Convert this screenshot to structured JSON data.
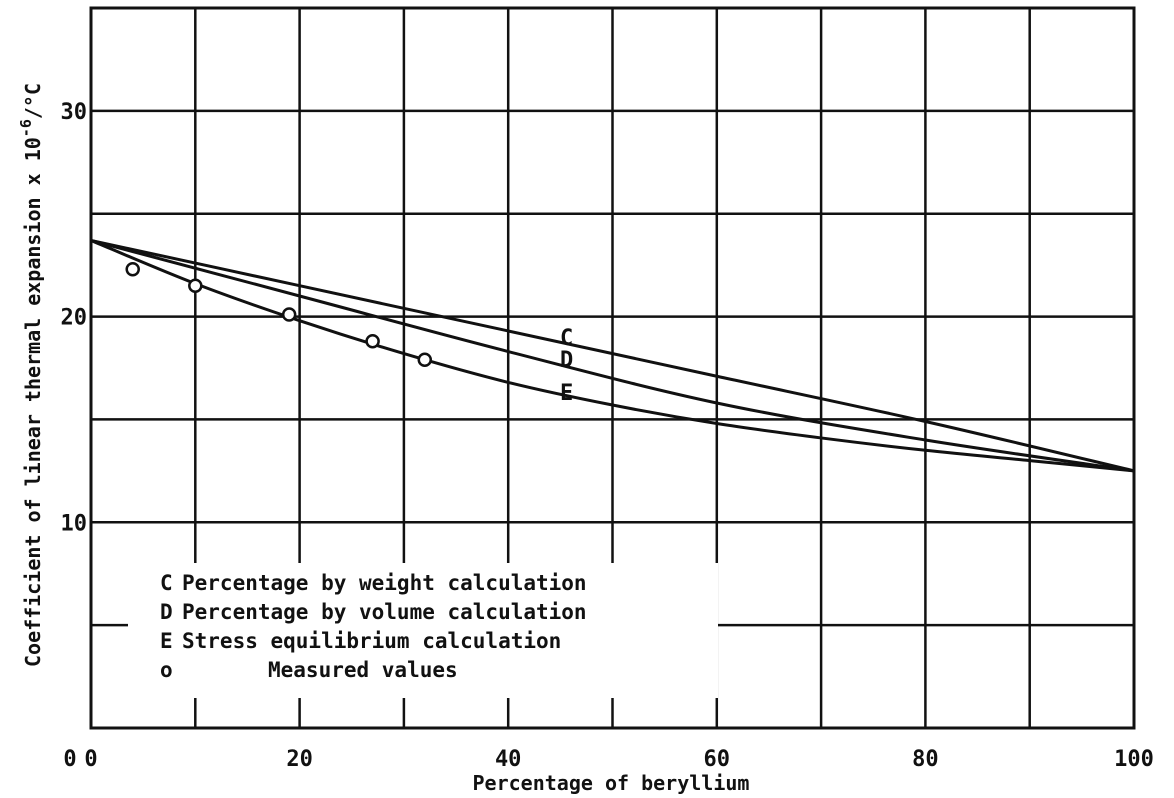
{
  "chart_data": {
    "type": "line",
    "xlabel": "Percentage of beryllium",
    "ylabel": "Coefficient of linear thermal expansion x 10",
    "ylabel_exp": "-6",
    "ylabel_unit": "/°C",
    "xlim": [
      0,
      100
    ],
    "ylim": [
      0,
      35
    ],
    "x_ticks": [
      0,
      20,
      40,
      60,
      80,
      100
    ],
    "y_ticks": [
      10,
      20,
      30
    ],
    "grid": true,
    "series": [
      {
        "name": "C",
        "x": [
          0,
          20,
          40,
          60,
          80,
          100
        ],
        "y": [
          23.7,
          21.5,
          19.3,
          17.1,
          14.9,
          12.5
        ]
      },
      {
        "name": "D",
        "x": [
          0,
          20,
          40,
          60,
          80,
          100
        ],
        "y": [
          23.7,
          21.0,
          18.3,
          15.8,
          14.0,
          12.5
        ]
      },
      {
        "name": "E",
        "x": [
          0,
          10,
          20,
          30,
          40,
          50,
          60,
          70,
          80,
          90,
          100
        ],
        "y": [
          23.7,
          21.6,
          19.8,
          18.2,
          16.8,
          15.7,
          14.8,
          14.1,
          13.5,
          13.0,
          12.5
        ]
      },
      {
        "name": "o",
        "type": "scatter",
        "x": [
          4,
          10,
          19,
          27,
          32
        ],
        "y": [
          22.3,
          21.5,
          20.1,
          18.8,
          17.9
        ]
      }
    ],
    "legend": {
      "placement": "bottom-left",
      "entries": [
        {
          "symbol": "C",
          "text": "Percentage by weight calculation"
        },
        {
          "symbol": "D",
          "text": "Percentage by volume calculation"
        },
        {
          "symbol": "E",
          "text": "Stress equilibrium calculation"
        },
        {
          "symbol": "o",
          "text": "Measured values"
        }
      ]
    }
  }
}
